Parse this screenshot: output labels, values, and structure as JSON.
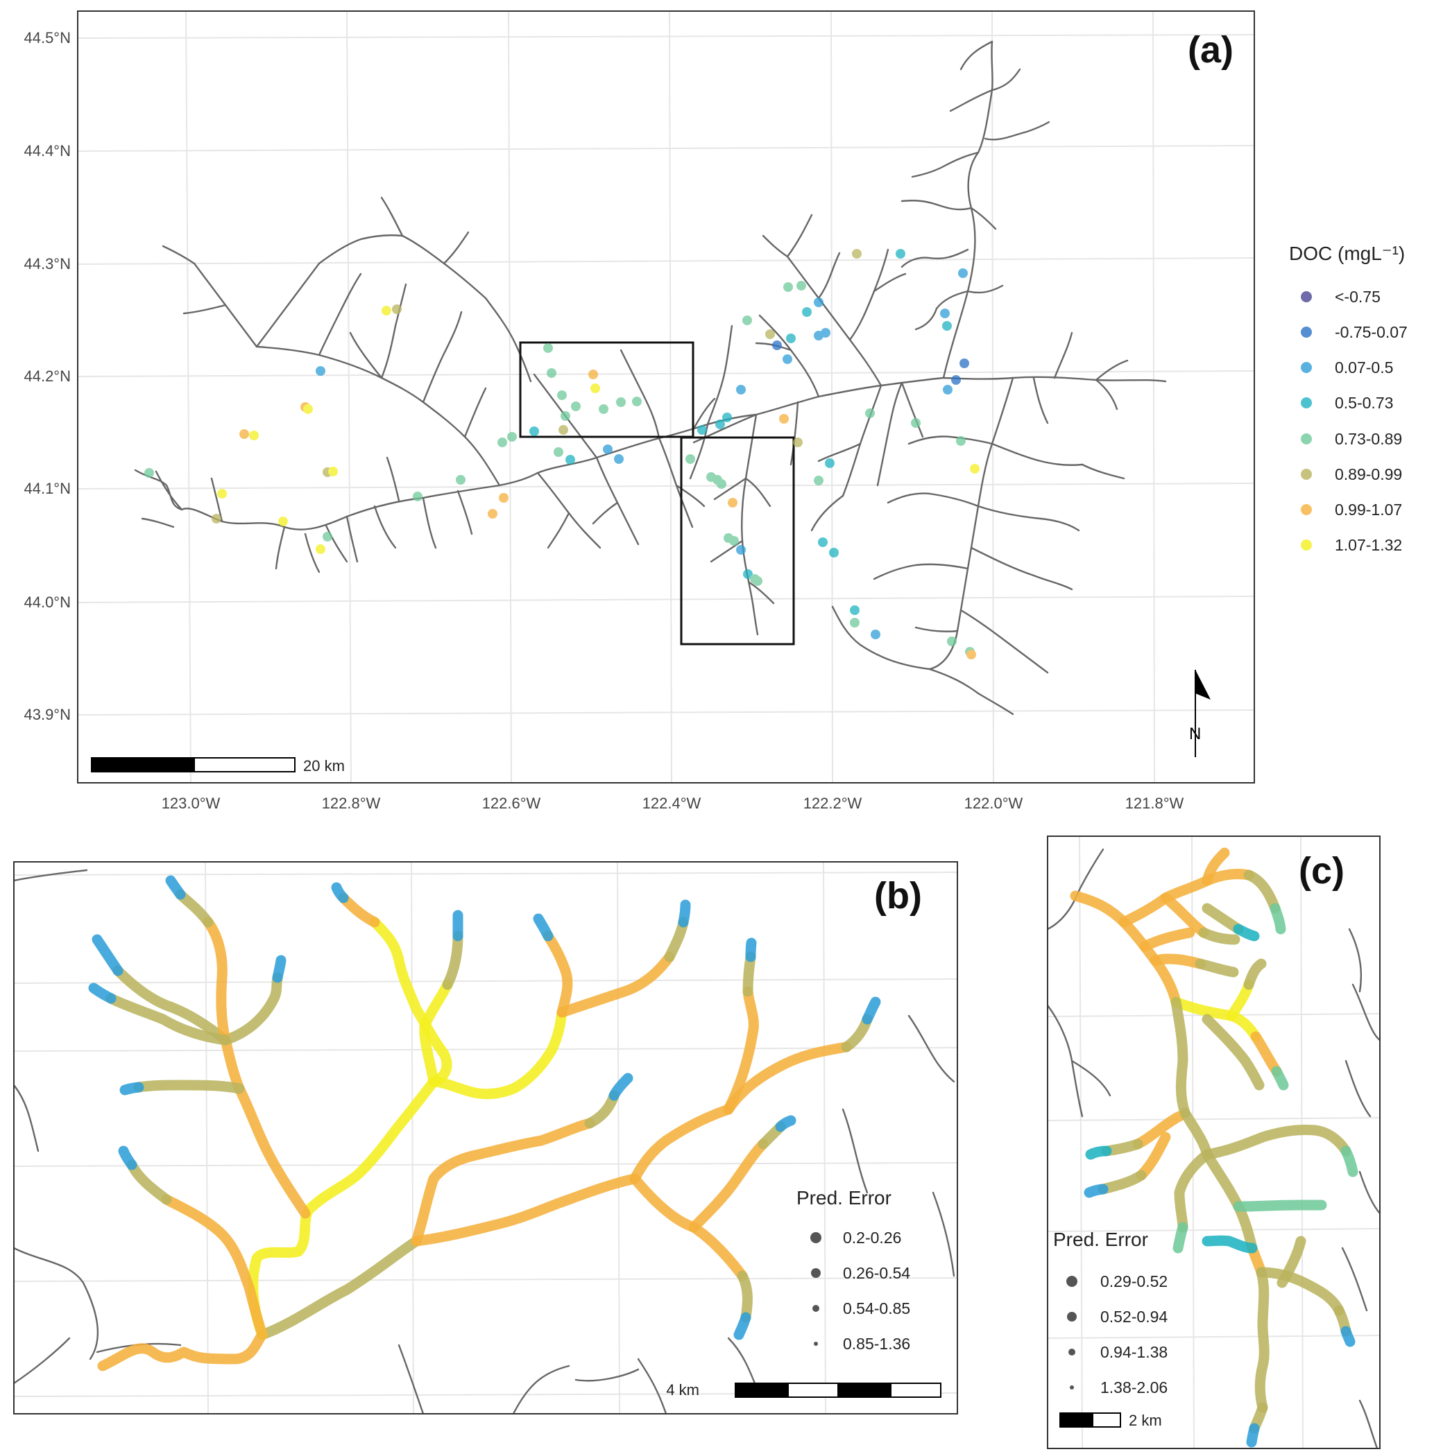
{
  "panel_a": {
    "label": "(a)",
    "lat_ticks": [
      "44.5°N",
      "44.4°N",
      "44.3°N",
      "44.2°N",
      "44.1°N",
      "44.0°N",
      "43.9°N"
    ],
    "lon_ticks": [
      "123.0°W",
      "122.8°W",
      "122.6°W",
      "122.4°W",
      "122.2°W",
      "122.0°W",
      "121.8°W"
    ],
    "scale_label": "20 km",
    "north_label": "N",
    "legend": {
      "title": "DOC (mgL⁻¹)",
      "items": [
        {
          "label": "<-0.75",
          "color": "#4b4593"
        },
        {
          "label": "-0.75-0.07",
          "color": "#2b72c6"
        },
        {
          "label": "0.07-0.5",
          "color": "#2f9ed8"
        },
        {
          "label": "0.5-0.73",
          "color": "#1fb3c2"
        },
        {
          "label": "0.73-0.89",
          "color": "#6fc99a"
        },
        {
          "label": "0.89-0.99",
          "color": "#b9b45e"
        },
        {
          "label": "0.99-1.07",
          "color": "#f5b03c"
        },
        {
          "label": "1.07-1.32",
          "color": "#f4ef1f"
        }
      ]
    }
  },
  "panel_b": {
    "label": "(b)",
    "scale_label": "4 km",
    "legend": {
      "title": "Pred. Error",
      "items": [
        "0.2-0.26",
        "0.26-0.54",
        "0.54-0.85",
        "0.85-1.36"
      ]
    }
  },
  "panel_c": {
    "label": "(c)",
    "scale_label": "2 km",
    "legend": {
      "title": "Pred. Error",
      "items": [
        "0.29-0.52",
        "0.52-0.94",
        "0.94-1.38",
        "1.38-2.06"
      ]
    }
  }
}
